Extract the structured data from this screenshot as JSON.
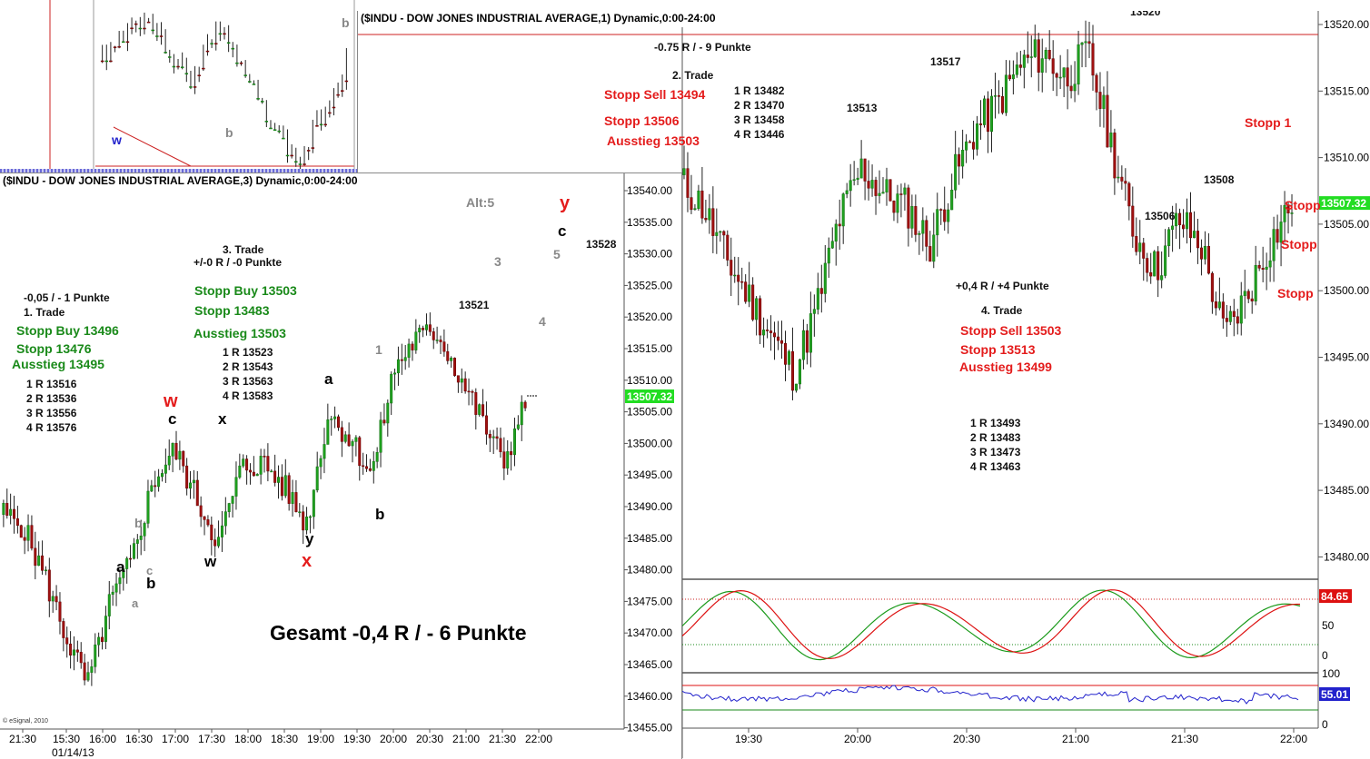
{
  "top_left_window": {
    "labels": {
      "w": "w",
      "b1": "b",
      "b2": "b"
    }
  },
  "right_window": {
    "title": "($INDU - DOW JONES INDUSTRIAL AVERAGE,1) Dynamic,0:00-24:00",
    "annotations": {
      "r_pts": "-0.75 R / - 9 Punkte",
      "trade2": "2. Trade",
      "stopp_sell": "Stopp Sell 13494",
      "stopp": "Stopp 13506",
      "ausstieg": "Ausstieg 13503",
      "r1": "1 R 13482",
      "r2": "2 R 13470",
      "r3": "3 R 13458",
      "r4": "4 R 13446",
      "p13513": "13513",
      "p13517": "13517",
      "p13520": "13520",
      "p13508": "13508",
      "p13506": "13506",
      "t4_pts": "+0,4 R / +4 Punkte",
      "trade4": "4. Trade",
      "t4_sell": "Stopp Sell 13503",
      "t4_stopp": "Stopp 13513",
      "t4_aus": "Ausstieg 13499",
      "t4_r1": "1 R 13493",
      "t4_r2": "2 R 13483",
      "t4_r3": "3 R 13473",
      "t4_r4": "4 R 13463",
      "stopp_cut1": "Stopp 1",
      "stopp_cut2": "Stopp",
      "stopp_cut3": "Stopp",
      "stopp_cut4": "Stopp"
    },
    "price_axis": [
      "13520.00",
      "13515.00",
      "13510.00",
      "13505.00",
      "13500.00",
      "13495.00",
      "13490.00",
      "13485.00",
      "13480.00"
    ],
    "last_price": "13507.32",
    "stoch_axis": {
      "top": "84.65",
      "mid": "50",
      "bottom": "0"
    },
    "rsi_axis": {
      "top": "100",
      "value": "55.01",
      "bottom": "0"
    },
    "time_axis": [
      "19:30",
      "20:00",
      "20:30",
      "21:00",
      "21:30",
      "22:00"
    ]
  },
  "left_window": {
    "title": "($INDU - DOW JONES INDUSTRIAL AVERAGE,3) Dynamic,0:00-24:00",
    "alt": "Alt:5",
    "trade1": {
      "pts": "-0,05 / - 1 Punkte",
      "title": "1. Trade",
      "buy": "Stopp Buy 13496",
      "stopp": "Stopp 13476",
      "aus": "Ausstieg 13495",
      "r1": "1 R 13516",
      "r2": "2 R 13536",
      "r3": "3 R 13556",
      "r4": "4 R 13576"
    },
    "trade3": {
      "title": "3. Trade",
      "pts": "+/-0 R / -0 Punkte",
      "buy": "Stopp Buy 13503",
      "stopp": "Stopp 13483",
      "aus": "Ausstieg 13503",
      "r1": "1 R 13523",
      "r2": "2 R 13543",
      "r3": "3 R 13563",
      "r4": "4 R 13583"
    },
    "wave": {
      "W": "w",
      "c1": "c",
      "x1": "x",
      "w2": "w",
      "a1": "a",
      "b1": "b",
      "b_g": "b",
      "c_g": "c",
      "a_g": "a",
      "y1": "y",
      "X": "x",
      "a2": "a",
      "b2": "b",
      "one": "1",
      "three": "3",
      "four": "4",
      "five": "5",
      "Y": "y",
      "c2": "c"
    },
    "p13521": "13521",
    "p13528": "13528",
    "gesamt": "Gesamt -0,4 R / - 6 Punkte",
    "esignal": "© eSignal, 2010",
    "price_axis": [
      "13540.00",
      "13535.00",
      "13530.00",
      "13525.00",
      "13520.00",
      "13515.00",
      "13510.00",
      "13505.00",
      "13500.00",
      "13495.00",
      "13490.00",
      "13485.00",
      "13480.00",
      "13475.00",
      "13470.00",
      "13465.00",
      "13460.00",
      "13455.00"
    ],
    "last_price": "13507.32",
    "time_axis": [
      "21:30",
      "15:30",
      "16:00",
      "16:30",
      "17:00",
      "17:30",
      "18:00",
      "18:30",
      "19:00",
      "19:30",
      "20:00",
      "20:30",
      "21:00",
      "21:30",
      "22:00"
    ],
    "date": "01/14/13"
  },
  "chart_data": [
    {
      "type": "candlestick",
      "title": "($INDU - DOW JONES INDUSTRIAL AVERAGE,1) Dynamic,0:00-24:00",
      "x_ticks": [
        "19:30",
        "20:00",
        "20:30",
        "21:00",
        "21:30",
        "22:00"
      ],
      "ylim": [
        13478,
        13521
      ],
      "series": [
        {
          "values_close": [
            13509,
            13507,
            13503,
            13500,
            13497,
            13494,
            13499,
            13506,
            13510,
            13508,
            13507,
            13504,
            13509,
            13513,
            13515,
            13518,
            13519,
            13517,
            13519,
            13512,
            13505,
            13502,
            13506,
            13504,
            13497,
            13500,
            13504,
            13507.32
          ]
        }
      ]
    },
    {
      "type": "candlestick",
      "title": "($INDU - DOW JONES INDUSTRIAL AVERAGE,3) Dynamic,0:00-24:00",
      "x_ticks": [
        "21:30",
        "15:30",
        "16:00",
        "16:30",
        "17:00",
        "17:30",
        "18:00",
        "18:30",
        "19:00",
        "19:30",
        "20:00",
        "20:30",
        "21:00",
        "21:30",
        "22:00"
      ],
      "ylim": [
        13455,
        13542
      ],
      "series": [
        {
          "values_close": [
            13490,
            13488,
            13480,
            13470,
            13462,
            13475,
            13482,
            13495,
            13500,
            13492,
            13485,
            13497,
            13498,
            13494,
            13488,
            13506,
            13502,
            13496,
            13513,
            13518,
            13519,
            13512,
            13505,
            13498,
            13507.32
          ]
        }
      ]
    }
  ]
}
